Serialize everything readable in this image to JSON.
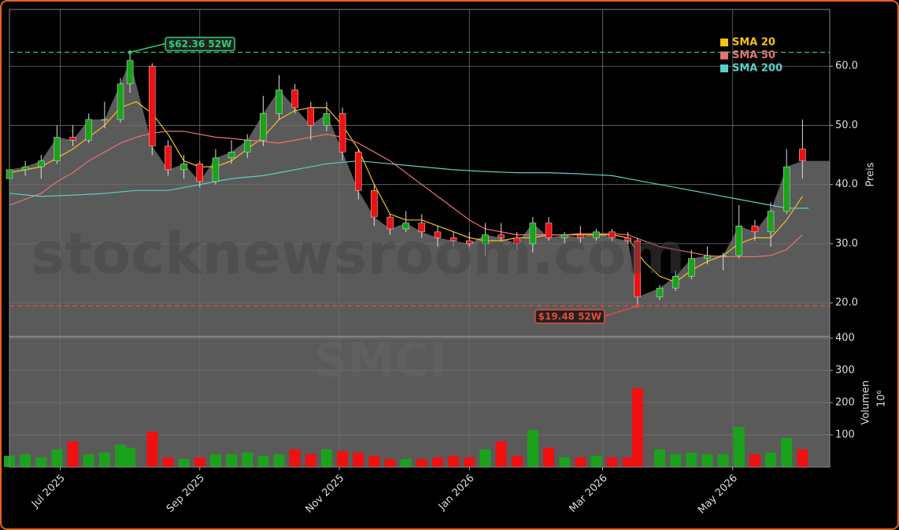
{
  "chart_data": {
    "type": "candlestick",
    "watermark": "stocknewsroom.com",
    "symbol_watermark": "SMCI",
    "ylabel": "Preis",
    "y2label": "Volumen",
    "y2_offset_label": "10⁶",
    "xlim": [
      0,
      258.6
    ],
    "xticks": [
      {
        "value": 16,
        "label": "Jul 2025"
      },
      {
        "value": 60,
        "label": "Sep 2025"
      },
      {
        "value": 104,
        "label": "Nov 2025"
      },
      {
        "value": 145,
        "label": "Jan 2026"
      },
      {
        "value": 187,
        "label": "Mar 2026"
      },
      {
        "value": 228,
        "label": "May 2026"
      }
    ],
    "ylim": [
      14.3,
      69.6
    ],
    "yticks": [
      {
        "value": 20,
        "label": "20.0"
      },
      {
        "value": 30,
        "label": "30.0"
      },
      {
        "value": 40,
        "label": "40.0"
      },
      {
        "value": 50,
        "label": "50.0"
      },
      {
        "value": 60,
        "label": "60.0"
      }
    ],
    "y2lim": [
      0,
      405
    ],
    "y2ticks": [
      100,
      200,
      300,
      400
    ],
    "grid": true,
    "up_color": "#1aa31a",
    "down_color": "#f01010",
    "area_color": "#5a5a5a",
    "x": [
      0,
      5,
      10,
      15,
      20,
      25,
      30,
      35,
      38,
      45,
      50,
      55,
      60,
      65,
      70,
      75,
      80,
      85,
      90,
      95,
      100,
      105,
      110,
      115,
      120,
      125,
      130,
      135,
      140,
      145,
      150,
      155,
      160,
      165,
      170,
      175,
      180,
      185,
      190,
      195,
      198,
      205,
      210,
      215,
      220,
      225,
      230,
      235,
      240,
      245,
      250
    ],
    "open": [
      41,
      42.5,
      43,
      44,
      48,
      47.5,
      51,
      51,
      57,
      60,
      46.5,
      42.5,
      43.5,
      40.5,
      44.5,
      45.5,
      47.5,
      52,
      56,
      53,
      50,
      52,
      45.5,
      39,
      34.5,
      32.5,
      33.5,
      32,
      31,
      30.5,
      30,
      31.5,
      31,
      30,
      33.5,
      31,
      31.5,
      31,
      32,
      31,
      30.5,
      21,
      22.5,
      24.5,
      27.5,
      28,
      28,
      33,
      32,
      35.5,
      46
    ],
    "high": [
      43,
      44,
      45,
      50,
      50,
      52,
      54,
      58,
      62.36,
      60.5,
      47.5,
      45,
      44,
      46,
      47.5,
      48.5,
      55,
      58.5,
      57,
      54,
      54,
      53,
      46,
      40,
      35,
      35.5,
      35,
      33,
      32,
      32,
      33.5,
      33.5,
      32,
      34.5,
      34.5,
      32,
      33,
      32.5,
      32.5,
      32,
      31,
      23,
      25.5,
      29,
      29.5,
      28.5,
      36.5,
      34,
      37,
      46,
      51
    ],
    "low": [
      40.5,
      41.5,
      41,
      43.5,
      46.5,
      47,
      49.5,
      50.5,
      55.5,
      45,
      41.5,
      41,
      39.5,
      40,
      43.5,
      44.5,
      46.5,
      51,
      52,
      47.5,
      49,
      44,
      37.5,
      33,
      31.5,
      32,
      31,
      29.5,
      29.5,
      29.5,
      28,
      30.5,
      29,
      28.5,
      30.5,
      30,
      30,
      30.5,
      30.5,
      30,
      19.48,
      20.5,
      22,
      24,
      26.5,
      25.5,
      27.5,
      30.5,
      29.5,
      35,
      41
    ],
    "close": [
      42.5,
      43,
      44,
      48,
      47.5,
      51,
      51,
      57,
      61,
      46.5,
      42.5,
      43.5,
      40.5,
      44.5,
      45.5,
      47.5,
      52,
      56,
      53,
      50,
      52,
      45.5,
      39,
      34.5,
      32.5,
      33.5,
      32,
      31,
      30.5,
      30,
      31.5,
      31,
      30,
      33.5,
      31,
      31.5,
      31,
      32,
      31,
      30.5,
      21,
      22.5,
      24.5,
      27.5,
      28,
      28,
      33,
      32,
      35.5,
      43,
      44
    ],
    "volume": [
      35,
      40,
      30,
      55,
      80,
      40,
      45,
      70,
      60,
      110,
      30,
      25,
      30,
      40,
      40,
      45,
      35,
      40,
      55,
      40,
      55,
      50,
      45,
      35,
      25,
      25,
      25,
      30,
      35,
      30,
      55,
      80,
      35,
      115,
      60,
      30,
      30,
      35,
      30,
      30,
      245,
      55,
      40,
      45,
      40,
      40,
      125,
      40,
      45,
      90,
      55
    ],
    "series": [
      {
        "name": "SMA 20",
        "color": "#f2c318",
        "x": [
          0,
          5,
          10,
          15,
          20,
          25,
          30,
          35,
          40,
          45,
          50,
          55,
          60,
          65,
          70,
          75,
          80,
          85,
          90,
          95,
          100,
          105,
          110,
          115,
          120,
          125,
          130,
          135,
          140,
          145,
          150,
          155,
          160,
          165,
          170,
          175,
          180,
          185,
          190,
          195,
          200,
          205,
          210,
          215,
          220,
          225,
          230,
          235,
          240,
          245,
          250
        ],
        "values": [
          42,
          42.5,
          43,
          44.5,
          46,
          48,
          50,
          53,
          54,
          52,
          48.5,
          44,
          43,
          43,
          44,
          46,
          48,
          51,
          52.5,
          53,
          53,
          50,
          46,
          40,
          35,
          34,
          34,
          33,
          32,
          31,
          30.5,
          30.5,
          31,
          31,
          31.5,
          31.5,
          31.5,
          31.5,
          31.5,
          31,
          27,
          24.5,
          23.5,
          25.5,
          27,
          28,
          30,
          31,
          31,
          34,
          38
        ]
      },
      {
        "name": "SMA 50",
        "color": "#f07070",
        "x": [
          0,
          5,
          10,
          15,
          20,
          25,
          30,
          35,
          40,
          45,
          50,
          55,
          60,
          65,
          70,
          75,
          80,
          85,
          90,
          95,
          100,
          105,
          110,
          115,
          120,
          125,
          130,
          135,
          140,
          145,
          150,
          155,
          160,
          165,
          170,
          175,
          180,
          185,
          190,
          195,
          200,
          205,
          210,
          215,
          220,
          225,
          230,
          235,
          240,
          245,
          250
        ],
        "values": [
          36.5,
          37.5,
          38.5,
          40.5,
          42,
          44,
          45.5,
          47,
          48,
          48.7,
          49,
          49,
          48.5,
          48,
          47.8,
          47.5,
          47.3,
          47,
          47.5,
          48,
          48.5,
          48,
          47,
          45.5,
          44,
          42,
          40,
          38,
          36,
          34,
          32.5,
          32,
          31.5,
          31.5,
          31.5,
          31.5,
          31.7,
          31.7,
          31.7,
          31.5,
          30.5,
          29.5,
          29,
          28.5,
          28,
          27.8,
          27.8,
          27.8,
          28,
          29,
          31.5
        ]
      },
      {
        "name": "SMA 200",
        "color": "#5ccfc6",
        "x": [
          0,
          10,
          20,
          30,
          40,
          50,
          60,
          70,
          80,
          90,
          100,
          110,
          120,
          130,
          140,
          150,
          160,
          170,
          180,
          190,
          200,
          210,
          220,
          230,
          240,
          245,
          252
        ],
        "values": [
          38.5,
          38,
          38.2,
          38.5,
          39,
          39,
          40,
          41,
          41.5,
          42.5,
          43.5,
          44,
          43.5,
          43,
          42.5,
          42.2,
          42,
          42,
          41.8,
          41.5,
          40.5,
          39.5,
          38.5,
          37.5,
          36.5,
          36,
          36
        ]
      }
    ],
    "annotations": [
      {
        "text": "$62.36 52W",
        "value": 62.36,
        "x": 38,
        "color": "#2ecc71"
      },
      {
        "text": "$19.48 52W",
        "value": 19.48,
        "x": 198,
        "color": "#e74c3c"
      }
    ]
  }
}
